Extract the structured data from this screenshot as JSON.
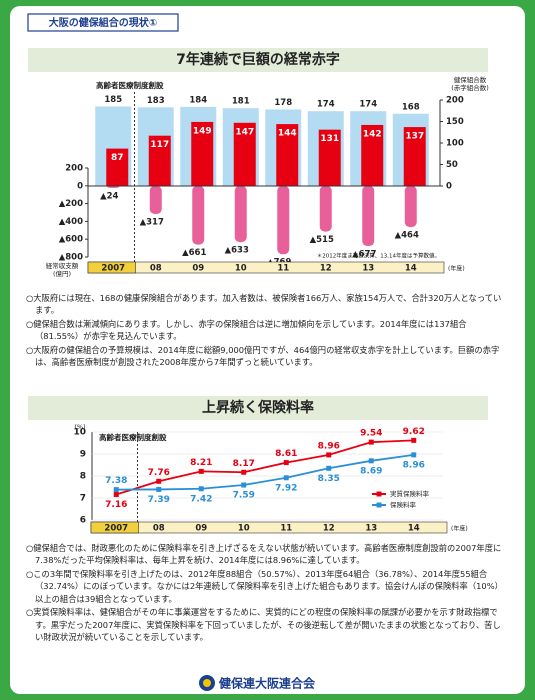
{
  "header": {
    "badge": "大阪の健保組合の現状①"
  },
  "chart_data": [
    {
      "type": "bar",
      "title": "7年連続で巨額の経常赤字",
      "annotation": "高齢者医療制度創設",
      "note": "＊2012年度までは決算、13,14年度は予算数値。",
      "x_label": "(年度)",
      "y_label": [
        "経常収支額",
        "(億円)"
      ],
      "y2_label": [
        "健保組合数",
        "(赤字組合数)"
      ],
      "categories": [
        "2007",
        "08",
        "09",
        "10",
        "11",
        "12",
        "13",
        "14"
      ],
      "ylim": [
        -800,
        200
      ],
      "yticks": [
        200,
        0,
        {
          "value": -200,
          "label": "▲200"
        },
        {
          "value": -400,
          "label": "▲400"
        },
        {
          "value": -600,
          "label": "▲600"
        },
        {
          "value": -800,
          "label": "▲800"
        }
      ],
      "y2lim": [
        0,
        200
      ],
      "y2ticks": [
        0,
        50,
        100,
        150,
        200
      ],
      "series": [
        {
          "color": "#b3dcf2",
          "axis": "y2",
          "values": [
            185,
            183,
            184,
            181,
            178,
            174,
            174,
            168
          ]
        },
        {
          "color": "#e60012",
          "axis": "y2",
          "values": [
            87,
            117,
            149,
            147,
            144,
            131,
            142,
            137
          ]
        },
        {
          "color": "#e8609a",
          "values": [
            -24,
            -317,
            -661,
            -633,
            -769,
            -515,
            -677,
            -464
          ],
          "value_labels": [
            "▲24",
            "▲317",
            "▲661",
            "▲633",
            "▲769",
            "▲515",
            "▲677",
            "▲464"
          ]
        }
      ]
    },
    {
      "type": "line",
      "title": "上昇続く保険料率",
      "annotation": "高齢者医療制度創設",
      "x_label": "(年度)",
      "y_label": "(%)",
      "categories": [
        "2007",
        "08",
        "09",
        "10",
        "11",
        "12",
        "13",
        "14"
      ],
      "ylim": [
        6,
        10
      ],
      "yticks": [
        6,
        7,
        8,
        9,
        10
      ],
      "grid": true,
      "series": [
        {
          "name": "実質保険料率",
          "color": "#e60012",
          "values": [
            7.16,
            7.76,
            8.21,
            8.17,
            8.61,
            8.96,
            9.54,
            9.62
          ]
        },
        {
          "name": "保険料率",
          "color": "#2a8fd6",
          "values": [
            7.38,
            7.39,
            7.42,
            7.59,
            7.92,
            8.35,
            8.69,
            8.96
          ]
        }
      ]
    }
  ],
  "notes_1": [
    "○大阪府には現在、168の健康保険組合があります。加入者数は、被保険者166万人、家族154万人で、合計320万人となっています。",
    "○健保組合数は漸減傾向にあります。しかし、赤字の保険組合は逆に増加傾向を示しています。2014年度には137組合（81.55%）が赤字を見込んでいます。",
    "○大阪府の健保組合の予算規模は、2014年度に総額9,000億円ですが、464億円の経常収支赤字を計上しています。巨額の赤字は、高齢者医療制度が創設された2008年度から7年間ずっと続いています。"
  ],
  "notes_2": [
    "○健保組合では、財政悪化のために保険料率を引き上げざるをえない状態が続いています。高齢者医療制度創設前の2007年度に7.38%だった平均保険料率は、毎年上昇を続け、2014年度には8.96%に達しています。",
    "○この3年間で保険料率を引き上げたのは、2012年度88組合（50.57%）、2013年度64組合（36.78%）、2014年度55組合（32.74%）にのぼっています。なかには2年連続して保険料率を引き上げた組合もあります。協会けんぽの保険料率（10%）以上の組合は39組合となっています。",
    "○実質保険料率は、健保組合がその年に事業運営をするために、実質的にどの程度の保険料率の賦課が必要かを示す財政指標です。黒字だった2007年度に、実質保険料率を下回っていましたが、その後逆転して差が開いたままの状態となっており、苦しい財政状況が続いていることを示しています。"
  ],
  "footer": "健保連大阪連合会"
}
